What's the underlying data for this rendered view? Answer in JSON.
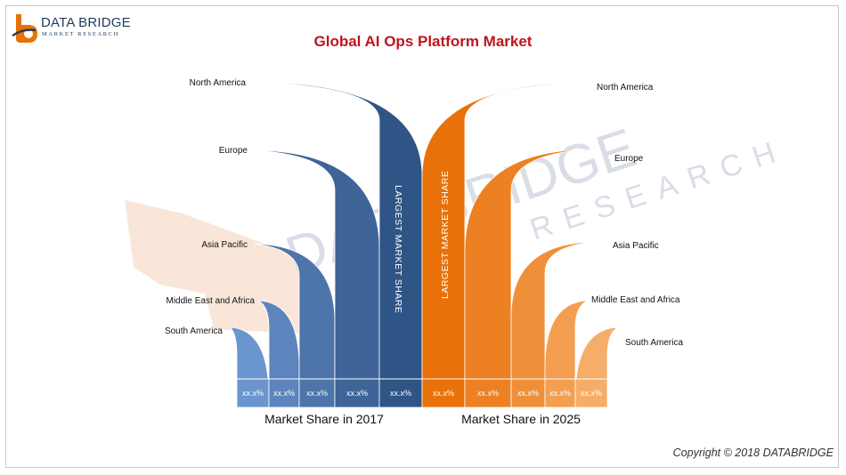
{
  "header": {
    "logo_name": "DATA BRIDGE",
    "logo_sub": "MARKET RESEARCH",
    "title": "Global AI Ops Platform Market"
  },
  "watermark": {
    "line1": "DATA BRIDGE",
    "line2": "RESEARCH"
  },
  "copyright": "Copyright © 2018 DATABRIDGE",
  "colors": {
    "title": "#c0151b",
    "left_dark": "#2f5486",
    "left_light": "#6b95cf",
    "right_dark": "#e8710a",
    "right_light": "#f6ad69"
  },
  "chart_data": {
    "type": "bar",
    "title": "Global AI Ops Platform Market",
    "categories": [
      "North America",
      "Europe",
      "Asia Pacific",
      "Middle East and Africa",
      "South America"
    ],
    "series": [
      {
        "name": "Market Share in 2017",
        "values": [
          "xx.x%",
          "xx.x%",
          "xx.x%",
          "xx.x%",
          "xx.x%"
        ],
        "highlight": "LARGEST MARKET SHARE"
      },
      {
        "name": "Market Share in 2025",
        "values": [
          "xx.x%",
          "xx.x%",
          "xx.x%",
          "xx.x%",
          "xx.x%"
        ],
        "highlight": "LARGEST MARKET SHARE"
      }
    ],
    "legend": "bottom"
  }
}
